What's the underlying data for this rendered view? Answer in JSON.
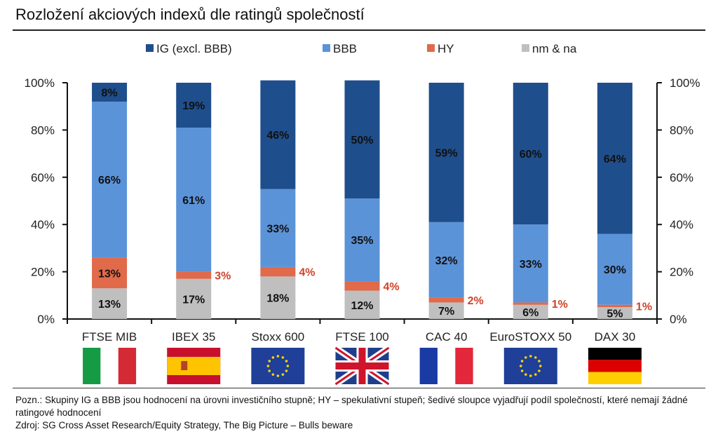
{
  "title": "Rozložení akciových indexů dle ratingů společností",
  "note": "Pozn.: Skupiny IG a BBB jsou hodnocení na úrovni investičního stupně; HY – spekulativní stupeň; šedivé sloupce vyjadřují podíl společností, které nemají žádné ratingové hodnocení",
  "source": "Zdroj: SG Cross Asset Research/Equity Strategy, The Big Picture – Bulls beware",
  "colors": {
    "ig": "#1f4e8c",
    "bbb": "#5b93d8",
    "hy": "#e06a4a",
    "nm": "#bfbfbf",
    "hy_label": "#d0432a"
  },
  "chart_data": {
    "type": "bar",
    "stacked": true,
    "categories": [
      "FTSE MIB",
      "IBEX 35",
      "Stoxx 600",
      "FTSE 100",
      "CAC 40",
      "EuroSTOXX 50",
      "DAX 30"
    ],
    "flags": [
      "italy-flag",
      "spain-flag",
      "eu-flag",
      "uk-flag",
      "france-flag",
      "eu-flag",
      "germany-flag"
    ],
    "series": [
      {
        "name": "nm & na",
        "values": [
          13,
          17,
          18,
          12,
          7,
          6,
          5
        ],
        "labels": [
          "13%",
          "17%",
          "18%",
          "12%",
          "7%",
          "6%",
          "5%"
        ]
      },
      {
        "name": "HY",
        "values": [
          13,
          3,
          4,
          4,
          2,
          1,
          1
        ],
        "labels": [
          "13%",
          "3%",
          "4%",
          "4%",
          "2%",
          "1%",
          "1%"
        ]
      },
      {
        "name": "BBB",
        "values": [
          66,
          61,
          33,
          35,
          32,
          33,
          30
        ],
        "labels": [
          "66%",
          "61%",
          "33%",
          "35%",
          "32%",
          "33%",
          "30%"
        ]
      },
      {
        "name": "IG (excl. BBB)",
        "values": [
          8,
          19,
          46,
          50,
          59,
          60,
          64
        ],
        "labels": [
          "8%",
          "19%",
          "46%",
          "50%",
          "59%",
          "60%",
          "64%"
        ]
      }
    ],
    "legend_order": [
      "IG (excl. BBB)",
      "BBB",
      "HY",
      "nm & na"
    ],
    "yticks": [
      "0%",
      "20%",
      "40%",
      "60%",
      "80%",
      "100%"
    ],
    "ylim": [
      0,
      100
    ],
    "grid": false,
    "legend": "top"
  }
}
